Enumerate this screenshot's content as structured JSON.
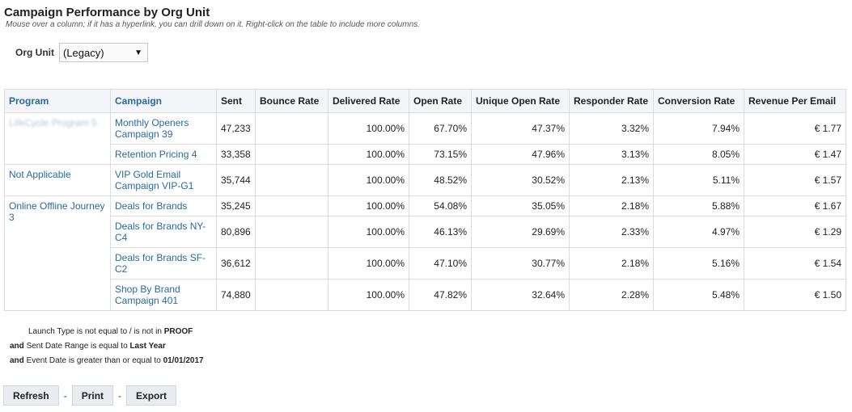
{
  "page": {
    "title": "Campaign Performance by Org Unit",
    "hint": "Mouse over a column; if it has a hyperlink, you can drill down on it. Right-click on the table to include more columns."
  },
  "filter": {
    "label": "Org Unit",
    "value": "(Legacy)"
  },
  "table": {
    "headers": [
      "Program",
      "Campaign",
      "Sent",
      "Bounce Rate",
      "Delivered Rate",
      "Open Rate",
      "Unique Open Rate",
      "Responder Rate",
      "Conversion Rate",
      "Revenue Per Email"
    ],
    "groups": [
      {
        "program": "LifeCycle Program 5",
        "rows": [
          {
            "campaign": [
              "Monthly Openers",
              "Campaign 39"
            ],
            "sent": "47,233",
            "bounce": "",
            "delivered": "100.00%",
            "open": "67.70%",
            "unique_open": "47.37%",
            "responder": "3.32%",
            "conversion": "7.94%",
            "revenue": "€ 1.77"
          },
          {
            "campaign": [
              "Retention Pricing 4"
            ],
            "sent": "33,358",
            "bounce": "",
            "delivered": "100.00%",
            "open": "73.15%",
            "unique_open": "47.96%",
            "responder": "3.13%",
            "conversion": "8.05%",
            "revenue": "€ 1.47"
          }
        ]
      },
      {
        "program": "Not Applicable",
        "rows": [
          {
            "campaign": [
              "VIP Gold Email",
              "Campaign VIP-G1"
            ],
            "sent": "35,744",
            "bounce": "",
            "delivered": "100.00%",
            "open": "48.52%",
            "unique_open": "30.52%",
            "responder": "2.13%",
            "conversion": "5.11%",
            "revenue": "€ 1.57"
          }
        ]
      },
      {
        "program": "Online Offline Journey 3",
        "rows": [
          {
            "campaign": [
              "Deals for Brands"
            ],
            "sent": "35,245",
            "bounce": "",
            "delivered": "100.00%",
            "open": "54.08%",
            "unique_open": "35.05%",
            "responder": "2.18%",
            "conversion": "5.88%",
            "revenue": "€ 1.67"
          },
          {
            "campaign": [
              "Deals for Brands NY-",
              "C4"
            ],
            "sent": "80,896",
            "bounce": "",
            "delivered": "100.00%",
            "open": "46.13%",
            "unique_open": "29.69%",
            "responder": "2.33%",
            "conversion": "4.97%",
            "revenue": "€ 1.29"
          },
          {
            "campaign": [
              "Deals for Brands SF-",
              "C2"
            ],
            "sent": "36,612",
            "bounce": "",
            "delivered": "100.00%",
            "open": "47.10%",
            "unique_open": "30.77%",
            "responder": "2.18%",
            "conversion": "5.16%",
            "revenue": "€ 1.54"
          },
          {
            "campaign": [
              "Shop By Brand",
              "Campaign 401"
            ],
            "sent": "74,880",
            "bounce": "",
            "delivered": "100.00%",
            "open": "47.82%",
            "unique_open": "32.64%",
            "responder": "2.28%",
            "conversion": "5.48%",
            "revenue": "€ 1.50"
          }
        ]
      }
    ]
  },
  "criteria": [
    {
      "prefix": "",
      "text": "Launch Type is not equal to / is not in",
      "value": "PROOF"
    },
    {
      "prefix": "and",
      "text": "Sent Date Range is equal to",
      "value": "Last Year"
    },
    {
      "prefix": "and",
      "text": "Event Date is greater than or equal to",
      "value": "01/01/2017"
    }
  ],
  "actions": {
    "refresh": "Refresh",
    "print": "Print",
    "export": "Export",
    "separator": "-"
  }
}
